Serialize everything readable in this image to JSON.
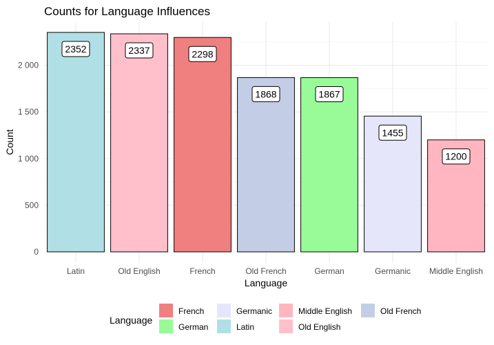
{
  "chart_data": {
    "type": "bar",
    "title": "Counts for Language Influences",
    "xlabel": "Language",
    "ylabel": "Count",
    "categories": [
      "Latin",
      "Old English",
      "French",
      "Old French",
      "German",
      "Germanic",
      "Middle English"
    ],
    "values": [
      2352,
      2337,
      2298,
      1868,
      1867,
      1455,
      1200
    ],
    "data_labels": [
      "2352",
      "2337",
      "2298",
      "1868",
      "1867",
      "1455",
      "1200"
    ],
    "ylim": [
      0,
      2470
    ],
    "yticks": [
      0,
      500,
      1000,
      1500,
      2000
    ],
    "ytick_labels": [
      "0",
      "500",
      "1 000",
      "1 500",
      "2 000"
    ],
    "grid": true,
    "legend": {
      "title": "Language",
      "position": "bottom",
      "entries": [
        "French",
        "German",
        "Germanic",
        "Latin",
        "Middle English",
        "Old English",
        "Old French"
      ]
    },
    "colors": {
      "Latin": "#b0e0e6",
      "Old English": "#ffc0cb",
      "French": "#f08080",
      "Old French": "#c4cde6",
      "German": "#98fb98",
      "Germanic": "#e6e6fa",
      "Middle English": "#ffb6c1"
    }
  }
}
